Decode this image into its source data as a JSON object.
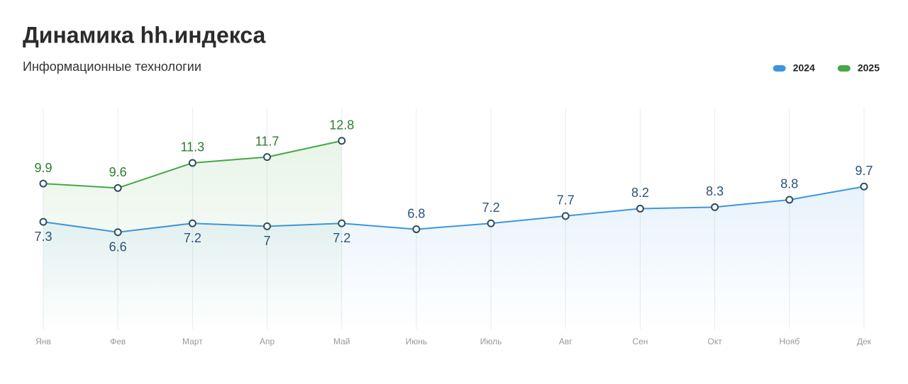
{
  "chart_data": {
    "type": "line",
    "title": "Динамика hh.индекса",
    "subtitle": "Информационные технологии",
    "categories": [
      "Янв",
      "Фев",
      "Март",
      "Апр",
      "Май",
      "Июнь",
      "Июль",
      "Авг",
      "Сен",
      "Окт",
      "Нояб",
      "Дек"
    ],
    "series": [
      {
        "name": "2024",
        "color": "#3d95e0",
        "values": [
          7.3,
          6.6,
          7.2,
          7,
          7.2,
          6.8,
          7.2,
          7.7,
          8.2,
          8.3,
          8.8,
          9.7
        ]
      },
      {
        "name": "2025",
        "color": "#46a846",
        "values": [
          9.9,
          9.6,
          11.3,
          11.7,
          12.8,
          null,
          null,
          null,
          null,
          null,
          null,
          null
        ]
      }
    ],
    "ylim": [
      0,
      15
    ],
    "grid": true,
    "legend": "top-right"
  }
}
